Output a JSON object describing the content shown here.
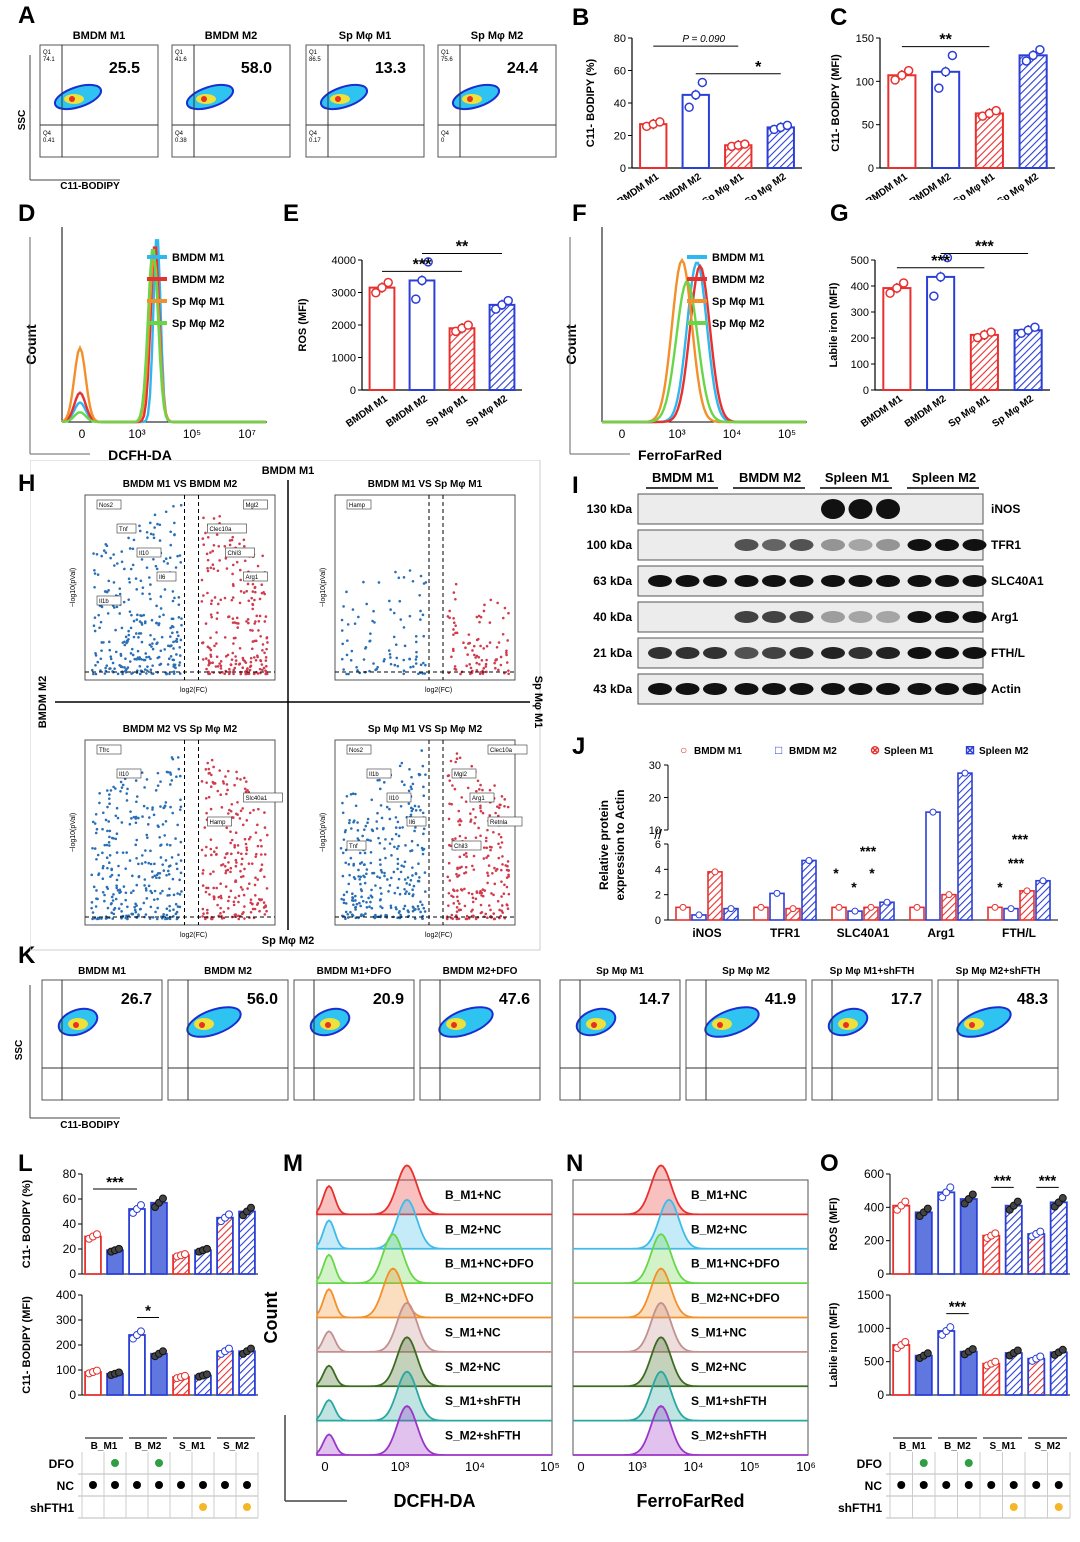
{
  "colors": {
    "red": "#e8312f",
    "blue": "#2b3fd6",
    "blue_fill": "#6077e0",
    "cyan": "#2fb7f0",
    "orange": "#f3902b",
    "green": "#69d64a"
  },
  "labels": {
    "A": "A",
    "B": "B",
    "C": "C",
    "D": "D",
    "E": "E",
    "F": "F",
    "G": "G",
    "H": "H",
    "I": "I",
    "J": "J",
    "K": "K",
    "L": "L",
    "M": "M",
    "N": "N",
    "O": "O"
  },
  "panelA": {
    "ylabel": "SSC",
    "xlabel": "C11-BODIPY",
    "plots": [
      {
        "title": "BMDM M1",
        "value": "25.5",
        "q1": "Q1\n74.1",
        "q4": "Q4\n0.41"
      },
      {
        "title": "BMDM M2",
        "value": "58.0",
        "q1": "Q1\n41.6",
        "q4": "Q4\n0.38"
      },
      {
        "title": "Sp Mφ M1",
        "value": "13.3",
        "q1": "Q1\n86.5",
        "q4": "Q4\n0.17"
      },
      {
        "title": "Sp Mφ M2",
        "value": "24.4",
        "q1": "Q1\n75.6",
        "q4": "Q4\n0"
      }
    ]
  },
  "panelK": {
    "ylabel": "SSC",
    "xlabel": "C11-BODIPY",
    "plots": [
      {
        "title": "BMDM M1",
        "value": "26.7"
      },
      {
        "title": "BMDM M2",
        "value": "56.0"
      },
      {
        "title": "BMDM M1+DFO",
        "value": "20.9"
      },
      {
        "title": "BMDM M2+DFO",
        "value": "47.6"
      },
      {
        "title": "Sp Mφ M1",
        "value": "14.7"
      },
      {
        "title": "Sp Mφ M2",
        "value": "41.9"
      },
      {
        "title": "Sp Mφ M1+shFTH",
        "value": "17.7"
      },
      {
        "title": "Sp Mφ M2+shFTH",
        "value": "48.3"
      }
    ]
  },
  "chart_data": [
    {
      "id": "B",
      "type": "bar",
      "categories": [
        "BMDM M1",
        "BMDM M2",
        "Sp Mφ M1",
        "Sp Mφ M2"
      ],
      "values": [
        27,
        45,
        14,
        25
      ],
      "ylabel": "C11- BODIPY (%)",
      "ylim": [
        0,
        80
      ],
      "yticks": [
        0,
        20,
        40,
        60,
        80
      ],
      "annotations": [
        "P = 0.090",
        "*"
      ]
    },
    {
      "id": "C",
      "type": "bar",
      "categories": [
        "BMDM M1",
        "BMDM M2",
        "Sp Mφ M1",
        "Sp Mφ M2"
      ],
      "values": [
        107,
        111,
        63,
        130
      ],
      "ylabel": "C11- BODIPY (MFI)",
      "ylim": [
        0,
        150
      ],
      "yticks": [
        0,
        50,
        100,
        150
      ],
      "annotations": [
        "**"
      ]
    },
    {
      "id": "E",
      "type": "bar",
      "categories": [
        "BMDM M1",
        "BMDM M2",
        "Sp Mφ M1",
        "Sp Mφ M2"
      ],
      "values": [
        3150,
        3370,
        1900,
        2620
      ],
      "ylabel": "ROS (MFI)",
      "ylim": [
        0,
        4000
      ],
      "yticks": [
        0,
        1000,
        2000,
        3000,
        4000
      ],
      "annotations": [
        "***",
        "**"
      ]
    },
    {
      "id": "G",
      "type": "bar",
      "categories": [
        "BMDM M1",
        "BMDM M2",
        "Sp Mφ M1",
        "Sp Mφ M2"
      ],
      "values": [
        392,
        435,
        212,
        230
      ],
      "ylabel": "Labile iron (MFI)",
      "ylim": [
        0,
        500
      ],
      "yticks": [
        0,
        100,
        200,
        300,
        400,
        500
      ],
      "annotations": [
        "***",
        "***"
      ]
    },
    {
      "id": "D",
      "type": "line",
      "xlabel": "DCFH-DA",
      "ylabel": "Count",
      "series": [
        {
          "name": "BMDM M1"
        },
        {
          "name": "BMDM M2"
        },
        {
          "name": "Sp Mφ M1"
        },
        {
          "name": "Sp Mφ M2"
        }
      ],
      "xticks": [
        "0",
        "10³",
        "10⁵",
        "10⁷"
      ]
    },
    {
      "id": "F",
      "type": "line",
      "xlabel": "FerroFarRed",
      "ylabel": "Count",
      "series": [
        {
          "name": "BMDM M1"
        },
        {
          "name": "BMDM M2"
        },
        {
          "name": "Sp Mφ M1"
        },
        {
          "name": "Sp Mφ M2"
        }
      ],
      "xticks": [
        "0",
        "10³",
        "10⁴",
        "10⁵"
      ]
    },
    {
      "id": "H",
      "type": "scatter",
      "quadrants": [
        {
          "title": "BMDM M1 VS BMDM M2",
          "genes": [
            "Nos2",
            "Tnf",
            "Il10",
            "Il6",
            "Il1b",
            "Mgl2",
            "Clec10a",
            "Chil3",
            "Arg1"
          ]
        },
        {
          "title": "BMDM M1 VS Sp Mφ M1",
          "genes": [
            "Hamp"
          ]
        },
        {
          "title": "BMDM M2 VS Sp Mφ M2",
          "genes": [
            "Tfrc",
            "Il10",
            "Slc40a1",
            "Hamp"
          ]
        },
        {
          "title": "Sp Mφ M1 VS Sp Mφ M2",
          "genes": [
            "Nos2",
            "Il1b",
            "Il10",
            "Il6",
            "Tnf",
            "Clec10a",
            "Mgl2",
            "Arg1",
            "Retnla",
            "Chil3"
          ]
        }
      ],
      "axes": {
        "top": "BMDM M1",
        "bottom": "Sp Mφ M2",
        "left": "BMDM M2",
        "right": "Sp Mφ M1",
        "xlabel": "log2(FC)",
        "ylabel": "−log10(pVal)"
      }
    },
    {
      "id": "J",
      "type": "bar",
      "categories": [
        "iNOS",
        "TFR1",
        "SLC40A1",
        "Arg1",
        "FTH/L"
      ],
      "series": [
        {
          "name": "BMDM M1",
          "values": [
            1.0,
            1.0,
            1.0,
            1.0,
            1.0
          ]
        },
        {
          "name": "BMDM M2",
          "values": [
            0.4,
            2.1,
            0.7,
            15.5,
            0.9
          ]
        },
        {
          "name": "Spleen M1",
          "values": [
            3.8,
            0.9,
            1.0,
            2.0,
            2.3
          ]
        },
        {
          "name": "Spleen M2",
          "values": [
            0.9,
            4.7,
            1.4,
            27.5,
            3.1
          ]
        }
      ],
      "ylabel": "Relative protein expression to Actin",
      "yticks": [
        "0",
        "2",
        "4",
        "6",
        "10",
        "20",
        "30"
      ],
      "annotations": [
        "*",
        "*",
        "***",
        "*",
        "*",
        "***",
        "***"
      ]
    },
    {
      "id": "L1",
      "type": "bar",
      "groups": [
        "B_M1",
        "B_M2",
        "S_M1",
        "S_M2"
      ],
      "values": [
        30,
        19,
        52,
        57,
        15,
        19,
        45,
        50
      ],
      "ylabel": "C11- BODIPY (%)",
      "ylim": [
        0,
        80
      ],
      "yticks": [
        0,
        20,
        40,
        60,
        80
      ],
      "annotations": [
        "***"
      ]
    },
    {
      "id": "L2",
      "type": "bar",
      "groups": [
        "B_M1",
        "B_M2",
        "S_M1",
        "S_M2"
      ],
      "values": [
        92,
        85,
        240,
        165,
        72,
        78,
        175,
        175
      ],
      "ylabel": "C11- BODIPY (MFI)",
      "ylim": [
        0,
        400
      ],
      "yticks": [
        0,
        100,
        200,
        300,
        400
      ],
      "annotations": [
        "*"
      ]
    },
    {
      "id": "O1",
      "type": "bar",
      "groups": [
        "B_M1",
        "B_M2",
        "S_M1",
        "S_M2"
      ],
      "values": [
        410,
        370,
        490,
        450,
        230,
        410,
        240,
        430
      ],
      "ylabel": "ROS (MFI)",
      "ylim": [
        0,
        600
      ],
      "yticks": [
        0,
        200,
        400,
        600
      ],
      "annotations": [
        "***",
        "***"
      ]
    },
    {
      "id": "O2",
      "type": "bar",
      "groups": [
        "B_M1",
        "B_M2",
        "S_M1",
        "S_M2"
      ],
      "values": [
        750,
        590,
        960,
        650,
        470,
        630,
        545,
        640
      ],
      "ylabel": "Labile iron (MFI)",
      "ylim": [
        0,
        1500
      ],
      "yticks": [
        0,
        500,
        1000,
        1500
      ],
      "annotations": [
        "***"
      ]
    },
    {
      "id": "M",
      "type": "line",
      "xlabel": "DCFH-DA",
      "ylabel": "Count",
      "series": [
        {
          "name": "B_M1+NC"
        },
        {
          "name": "B_M2+NC"
        },
        {
          "name": "B_M1+NC+DFO"
        },
        {
          "name": "B_M2+NC+DFO"
        },
        {
          "name": "S_M1+NC"
        },
        {
          "name": "S_M2+NC"
        },
        {
          "name": "S_M1+shFTH"
        },
        {
          "name": "S_M2+shFTH"
        }
      ],
      "xticks": [
        "0",
        "10³",
        "10⁴",
        "10⁵"
      ]
    },
    {
      "id": "N",
      "type": "line",
      "xlabel": "FerroFarRed",
      "series": [
        {
          "name": "B_M1+NC"
        },
        {
          "name": "B_M2+NC"
        },
        {
          "name": "B_M1+NC+DFO"
        },
        {
          "name": "B_M2+NC+DFO"
        },
        {
          "name": "S_M1+NC"
        },
        {
          "name": "S_M2+NC"
        },
        {
          "name": "S_M1+shFTH"
        },
        {
          "name": "S_M2+shFTH"
        }
      ],
      "xticks": [
        "0",
        "10³",
        "10⁴",
        "10⁵",
        "10⁶"
      ]
    }
  ],
  "panelI": {
    "groups": [
      "BMDM M1",
      "BMDM M2",
      "Spleen M1",
      "Spleen M2"
    ],
    "rows": [
      {
        "kda": "130 kDa",
        "name": "iNOS"
      },
      {
        "kda": "100 kDa",
        "name": "TFR1"
      },
      {
        "kda": "63 kDa",
        "name": "SLC40A1"
      },
      {
        "kda": "40 kDa",
        "name": "Arg1"
      },
      {
        "kda": "21 kDa",
        "name": "FTH/L"
      },
      {
        "kda": "43 kDa",
        "name": "Actin"
      }
    ]
  },
  "matrix": {
    "rows": [
      "DFO",
      "NC",
      "shFTH1"
    ]
  }
}
